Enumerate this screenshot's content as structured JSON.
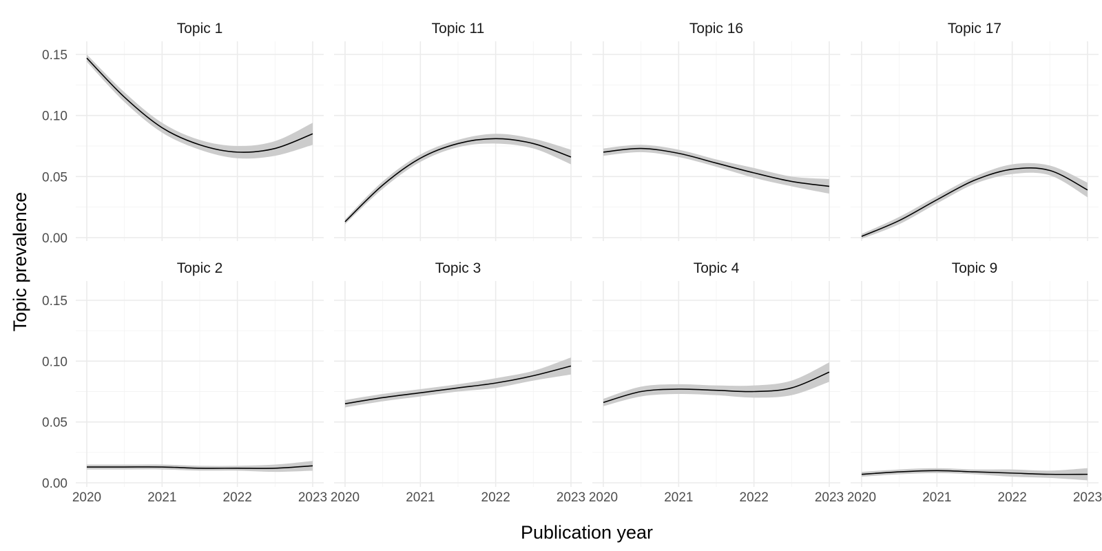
{
  "chart_data": {
    "type": "line",
    "xlabel": "Publication year",
    "ylabel": "Topic prevalence",
    "xlim": [
      2020,
      2023
    ],
    "ylim": [
      0,
      0.15
    ],
    "x_ticks": [
      "2020",
      "2021",
      "2022",
      "2023"
    ],
    "y_ticks": [
      "0.00",
      "0.05",
      "0.10",
      "0.15"
    ],
    "x_tick_values": [
      2020,
      2021,
      2022,
      2023
    ],
    "y_tick_values": [
      0,
      0.05,
      0.1,
      0.15
    ],
    "grid": true,
    "band_color": "#cccccc",
    "line_color": "#000000",
    "x": [
      2020,
      2020.5,
      2021,
      2021.5,
      2022,
      2022.5,
      2023
    ],
    "facets": [
      {
        "title": "Topic 1",
        "values": [
          0.147,
          0.115,
          0.09,
          0.076,
          0.07,
          0.073,
          0.085
        ],
        "band": [
          0.003,
          0.004,
          0.004,
          0.004,
          0.005,
          0.006,
          0.009
        ]
      },
      {
        "title": "Topic 11",
        "values": [
          0.013,
          0.043,
          0.065,
          0.077,
          0.081,
          0.077,
          0.066
        ],
        "band": [
          0.002,
          0.003,
          0.003,
          0.003,
          0.004,
          0.004,
          0.006
        ]
      },
      {
        "title": "Topic 16",
        "values": [
          0.07,
          0.073,
          0.069,
          0.061,
          0.053,
          0.046,
          0.042
        ],
        "band": [
          0.003,
          0.003,
          0.003,
          0.003,
          0.004,
          0.004,
          0.006
        ]
      },
      {
        "title": "Topic 17",
        "values": [
          0.001,
          0.014,
          0.031,
          0.047,
          0.056,
          0.055,
          0.039
        ],
        "band": [
          0.002,
          0.003,
          0.003,
          0.003,
          0.004,
          0.004,
          0.006
        ]
      },
      {
        "title": "Topic 2",
        "values": [
          0.013,
          0.013,
          0.013,
          0.012,
          0.012,
          0.012,
          0.014
        ],
        "band": [
          0.002,
          0.002,
          0.002,
          0.002,
          0.002,
          0.003,
          0.004
        ]
      },
      {
        "title": "Topic 3",
        "values": [
          0.065,
          0.07,
          0.074,
          0.078,
          0.082,
          0.088,
          0.096
        ],
        "band": [
          0.003,
          0.003,
          0.003,
          0.003,
          0.004,
          0.004,
          0.007
        ]
      },
      {
        "title": "Topic 4",
        "values": [
          0.066,
          0.075,
          0.077,
          0.076,
          0.075,
          0.078,
          0.091
        ],
        "band": [
          0.003,
          0.004,
          0.004,
          0.004,
          0.005,
          0.006,
          0.008
        ]
      },
      {
        "title": "Topic 9",
        "values": [
          0.007,
          0.009,
          0.01,
          0.009,
          0.008,
          0.007,
          0.007
        ],
        "band": [
          0.002,
          0.002,
          0.002,
          0.002,
          0.003,
          0.003,
          0.005
        ]
      }
    ]
  }
}
